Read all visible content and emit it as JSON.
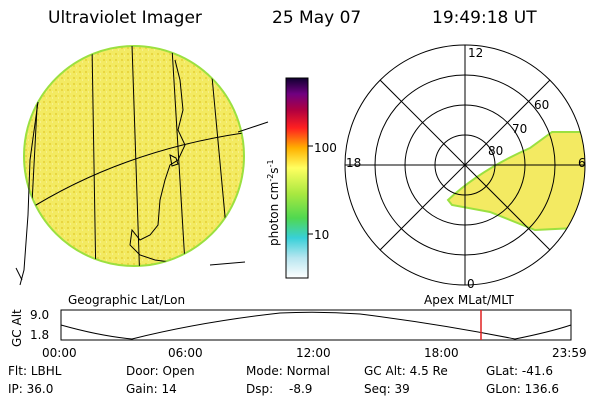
{
  "header": {
    "title": "Ultraviolet Imager",
    "date": "25 May 07",
    "time": "19:49:18 UT"
  },
  "colorbar": {
    "label": "photon cm^-2 s^-1",
    "ticks": [
      "100",
      "10"
    ]
  },
  "polar_plot": {
    "mlt_labels": [
      "12",
      "18",
      "6",
      "0"
    ],
    "lat_labels": [
      "60",
      "70",
      "80"
    ]
  },
  "captions": {
    "left": "Geographic Lat/Lon",
    "right": "Apex MLat/MLT"
  },
  "altitude_panel": {
    "ylabel": "GC Alt",
    "yticks": [
      "9.0",
      "1.8"
    ],
    "time_ticks": [
      "00:00",
      "06:00",
      "12:00",
      "18:00",
      "23:59"
    ],
    "current_time_marker": "19:49"
  },
  "status": {
    "flt": {
      "label": "Flt:",
      "value": "LBHL"
    },
    "ip": {
      "label": "IP:",
      "value": "36.0"
    },
    "door": {
      "label": "Door:",
      "value": "Open"
    },
    "gain": {
      "label": "Gain:",
      "value": "14"
    },
    "mode": {
      "label": "Mode:",
      "value": "Normal"
    },
    "dsp": {
      "label": "Dsp:",
      "value": "-8.9"
    },
    "gcalt": {
      "label": "GC Alt:",
      "value": "4.5 Re"
    },
    "seq": {
      "label": "Seq:",
      "value": "39"
    },
    "glat": {
      "label": "GLat:",
      "value": "-41.6"
    },
    "glon": {
      "label": "GLon:",
      "value": "136.6"
    }
  },
  "colors": {
    "emission": "#f2e860",
    "emission_edge": "#9be040",
    "marker": "#e02020"
  }
}
